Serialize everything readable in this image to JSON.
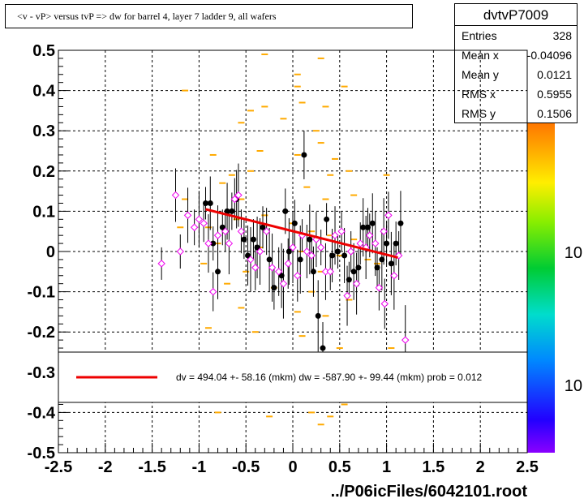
{
  "title": "<v - vP>       versus  tvP =>  dw for barrel 4, layer 7 ladder 9, all wafers",
  "stats": {
    "name": "dvtvP7009",
    "rows": [
      {
        "label": "Entries",
        "value": "328"
      },
      {
        "label": "Mean x",
        "value": "-0.04096"
      },
      {
        "label": "Mean y",
        "value": "0.0121"
      },
      {
        "label": "RMS x",
        "value": "0.5955"
      },
      {
        "label": "RMS y",
        "value": "0.1506"
      }
    ]
  },
  "legend": {
    "text": "dv =  494.04 +- 58.16 (mkm) dw = -587.90 +- 99.44 (mkm) prob = 0.012",
    "line_color": "#ee0000"
  },
  "footer": "../P06icFiles/6042101.root",
  "palette_labels": [
    "10",
    "10"
  ],
  "chart_data": {
    "type": "scatter",
    "xlim": [
      -2.5,
      2.5
    ],
    "ylim": [
      -0.5,
      0.5
    ],
    "xticks": [
      "-2.5",
      "-2",
      "-1.5",
      "-1",
      "-0.5",
      "0",
      "0.5",
      "1",
      "1.5",
      "2",
      "2.5"
    ],
    "yticks": [
      "0.5",
      "0.4",
      "0.3",
      "0.2",
      "0.1",
      "0",
      "-0.1",
      "-0.2",
      "-0.3",
      "-0.4",
      "-0.5"
    ],
    "grid": true,
    "fit_line": {
      "x": [
        -0.93,
        1.12
      ],
      "y": [
        0.105,
        -0.015
      ],
      "color": "#ee0000"
    },
    "histogram_cells": [
      [
        -0.3,
        0.49
      ],
      [
        0.05,
        0.44
      ],
      [
        0.3,
        0.48
      ],
      [
        -1.15,
        0.4
      ],
      [
        0.05,
        0.41
      ],
      [
        0.55,
        0.41
      ],
      [
        -0.45,
        0.35
      ],
      [
        -0.3,
        0.36
      ],
      [
        0.1,
        0.37
      ],
      [
        0.35,
        0.36
      ],
      [
        -0.55,
        0.32
      ],
      [
        -0.1,
        0.33
      ],
      [
        0.3,
        0.27
      ],
      [
        0.25,
        0.3
      ],
      [
        -0.85,
        0.24
      ],
      [
        -0.35,
        0.25
      ],
      [
        0.05,
        0.24
      ],
      [
        0.45,
        0.23
      ],
      [
        -0.65,
        0.19
      ],
      [
        -0.45,
        0.2
      ],
      [
        0.4,
        0.19
      ],
      [
        0.6,
        0.2
      ],
      [
        1.0,
        0.19
      ],
      [
        -0.75,
        0.17
      ],
      [
        -1.15,
        0.13
      ],
      [
        -0.55,
        0.13
      ],
      [
        -0.9,
        0.06
      ],
      [
        -0.6,
        0.08
      ],
      [
        -0.3,
        0.09
      ],
      [
        0.0,
        0.07
      ],
      [
        0.2,
        0.05
      ],
      [
        0.4,
        0.04
      ],
      [
        0.65,
        0.03
      ],
      [
        -0.8,
        0.02
      ],
      [
        -0.35,
        0.01
      ],
      [
        0.1,
        0.0
      ],
      [
        0.5,
        -0.01
      ],
      [
        0.8,
        -0.02
      ],
      [
        -0.95,
        -0.03
      ],
      [
        -0.5,
        -0.05
      ],
      [
        0.3,
        -0.05
      ],
      [
        0.9,
        -0.03
      ],
      [
        -0.7,
        -0.08
      ],
      [
        -0.2,
        -0.09
      ],
      [
        0.2,
        -0.1
      ],
      [
        0.6,
        -0.12
      ],
      [
        -0.55,
        -0.14
      ],
      [
        0.05,
        -0.15
      ],
      [
        0.35,
        -0.16
      ],
      [
        -0.9,
        -0.19
      ],
      [
        -0.4,
        -0.2
      ],
      [
        0.1,
        -0.21
      ],
      [
        0.5,
        -0.24
      ],
      [
        -0.6,
        -0.27
      ],
      [
        0.05,
        -0.29
      ],
      [
        0.35,
        -0.31
      ],
      [
        -0.35,
        -0.33
      ],
      [
        0.1,
        -0.36
      ],
      [
        0.8,
        -0.36
      ],
      [
        -0.25,
        -0.41
      ],
      [
        0.3,
        -0.43
      ],
      [
        0.2,
        -0.4
      ],
      [
        0.55,
        -0.38
      ],
      [
        -0.8,
        -0.4
      ],
      [
        0.4,
        -0.41
      ],
      [
        1.05,
        -0.24
      ],
      [
        0.35,
        0.13
      ],
      [
        -1.2,
        0.06
      ],
      [
        0.65,
        0.14
      ],
      [
        0.15,
        0.16
      ]
    ],
    "series": [
      {
        "marker": "filled-circle",
        "points": [
          [
            -0.93,
            0.12
          ],
          [
            -0.88,
            0.12
          ],
          [
            -0.85,
            0.02
          ],
          [
            -0.8,
            -0.05
          ],
          [
            -0.75,
            0.06
          ],
          [
            -0.7,
            0.1
          ],
          [
            -0.65,
            0.1
          ],
          [
            -0.6,
            0.13
          ],
          [
            -0.52,
            0.03
          ],
          [
            -0.48,
            -0.01
          ],
          [
            -0.42,
            0.03
          ],
          [
            -0.38,
            0.01
          ],
          [
            -0.32,
            0.06
          ],
          [
            -0.25,
            -0.02
          ],
          [
            -0.2,
            -0.09
          ],
          [
            -0.12,
            -0.06
          ],
          [
            -0.08,
            0.1
          ],
          [
            -0.04,
            0.0
          ],
          [
            0.02,
            0.07
          ],
          [
            0.08,
            -0.02
          ],
          [
            0.12,
            0.24
          ],
          [
            0.18,
            0.03
          ],
          [
            0.22,
            -0.05
          ],
          [
            0.27,
            -0.16
          ],
          [
            0.32,
            -0.24
          ],
          [
            0.36,
            0.08
          ],
          [
            0.42,
            -0.01
          ],
          [
            0.48,
            0.0
          ],
          [
            0.55,
            -0.01
          ],
          [
            0.6,
            -0.07
          ],
          [
            0.65,
            -0.05
          ],
          [
            0.7,
            -0.04
          ],
          [
            0.75,
            0.06
          ],
          [
            0.8,
            0.06
          ],
          [
            0.85,
            0.07
          ],
          [
            0.9,
            -0.04
          ],
          [
            0.95,
            -0.02
          ],
          [
            1.0,
            0.02
          ],
          [
            1.05,
            -0.03
          ],
          [
            1.1,
            0.02
          ],
          [
            1.15,
            0.07
          ]
        ]
      },
      {
        "marker": "open-diamond",
        "points": [
          [
            -1.4,
            -0.03
          ],
          [
            -1.25,
            0.14
          ],
          [
            -1.2,
            0.0
          ],
          [
            -1.12,
            0.09
          ],
          [
            -1.05,
            0.06
          ],
          [
            -1.0,
            0.08
          ],
          [
            -0.95,
            0.07
          ],
          [
            -0.9,
            0.02
          ],
          [
            -0.85,
            -0.1
          ],
          [
            -0.8,
            0.04
          ],
          [
            -0.72,
            0.05
          ],
          [
            -0.68,
            0.02
          ],
          [
            -0.62,
            0.13
          ],
          [
            -0.58,
            0.14
          ],
          [
            -0.55,
            0.05
          ],
          [
            -0.45,
            -0.02
          ],
          [
            -0.4,
            -0.04
          ],
          [
            -0.35,
            0.0
          ],
          [
            -0.28,
            0.05
          ],
          [
            -0.22,
            -0.04
          ],
          [
            -0.15,
            -0.05
          ],
          [
            -0.1,
            -0.08
          ],
          [
            -0.05,
            -0.03
          ],
          [
            0.0,
            0.01
          ],
          [
            0.05,
            -0.06
          ],
          [
            0.1,
            0.04
          ],
          [
            0.15,
            0.0
          ],
          [
            0.2,
            -0.01
          ],
          [
            0.25,
            0.03
          ],
          [
            0.3,
            0.01
          ],
          [
            0.35,
            -0.05
          ],
          [
            0.4,
            -0.05
          ],
          [
            0.45,
            0.04
          ],
          [
            0.52,
            0.05
          ],
          [
            0.58,
            -0.11
          ],
          [
            0.62,
            0.0
          ],
          [
            0.68,
            -0.08
          ],
          [
            0.72,
            0.02
          ],
          [
            0.78,
            0.01
          ],
          [
            0.82,
            0.04
          ],
          [
            0.88,
            0.02
          ],
          [
            0.92,
            -0.09
          ],
          [
            0.97,
            0.05
          ],
          [
            1.02,
            0.09
          ],
          [
            1.08,
            -0.06
          ],
          [
            1.13,
            -0.01
          ],
          [
            1.2,
            -0.22
          ],
          [
            0.98,
            -0.13
          ]
        ]
      }
    ]
  }
}
